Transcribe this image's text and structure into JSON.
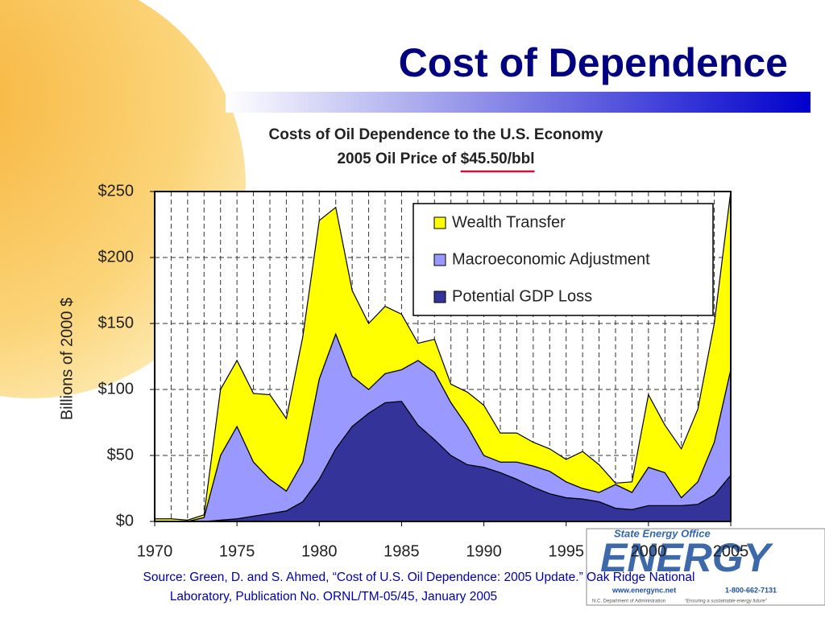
{
  "slide_title": "Cost of Dependence",
  "chart_data": {
    "type": "stacked_area",
    "title": "Costs of Oil Dependence to the U.S. Economy",
    "subtitle_prefix": "2005 Oil Price of ",
    "subtitle_highlight": "$45.50/bbl",
    "y_label": "Billions of 2000 $",
    "x": [
      1970,
      1971,
      1972,
      1973,
      1974,
      1975,
      1976,
      1977,
      1978,
      1979,
      1980,
      1981,
      1982,
      1983,
      1984,
      1985,
      1986,
      1987,
      1988,
      1989,
      1990,
      1991,
      1992,
      1993,
      1994,
      1995,
      1996,
      1997,
      1998,
      1999,
      2000,
      2001,
      2002,
      2003,
      2004,
      2005
    ],
    "series": [
      {
        "name": "Wealth Transfer",
        "color": "#ffff00",
        "values": [
          2,
          2,
          1,
          2,
          50,
          50,
          52,
          64,
          55,
          95,
          120,
          96,
          65,
          50,
          51,
          42,
          13,
          25,
          14,
          26,
          38,
          22,
          22,
          18,
          17,
          17,
          28,
          21,
          1,
          8,
          55,
          36,
          37,
          55,
          90,
          135
        ]
      },
      {
        "name": "Macroeconomic Adjustment",
        "color": "#9999ff",
        "values": [
          0,
          0,
          0,
          3,
          49,
          70,
          41,
          26,
          15,
          30,
          76,
          87,
          38,
          18,
          22,
          24,
          49,
          51,
          40,
          29,
          9,
          8,
          13,
          16,
          17,
          12,
          8,
          7,
          18,
          13,
          29,
          25,
          6,
          17,
          40,
          80
        ]
      },
      {
        "name": "Potential GDP Loss",
        "color": "#333399",
        "values": [
          0,
          0,
          0,
          0,
          1,
          2,
          4,
          6,
          8,
          15,
          32,
          55,
          72,
          82,
          90,
          91,
          73,
          62,
          50,
          43,
          41,
          37,
          32,
          26,
          21,
          18,
          17,
          15,
          10,
          9,
          12,
          12,
          12,
          13,
          20,
          35
        ]
      }
    ],
    "xlim": [
      1970,
      2005
    ],
    "xticks": [
      1970,
      1975,
      1980,
      1985,
      1990,
      1995,
      2000,
      2005
    ],
    "ylim": [
      0,
      250
    ],
    "yticks": [
      {
        "value": 0,
        "label": "$0"
      },
      {
        "value": 50,
        "label": "$50"
      },
      {
        "value": 100,
        "label": "$100"
      },
      {
        "value": 150,
        "label": "$150"
      },
      {
        "value": 200,
        "label": "$200"
      },
      {
        "value": 250,
        "label": "$250"
      }
    ],
    "grid": true,
    "legend": "upper right"
  },
  "source": [
    "Source: Green, D. and S. Ahmed, “Cost of U.S. Oil Dependence: 2005 Update.”  Oak Ridge National",
    "Laboratory, Publication No. ORNL/TM-05/45, January 2005"
  ],
  "logo": {
    "office": "State Energy Office",
    "word": "ENERGY",
    "web": "www.energync.net",
    "phone": "1-800-662-7131",
    "dept": "N.C. Department of Administration",
    "motto": "“Ensuring a sustainable energy future”"
  }
}
